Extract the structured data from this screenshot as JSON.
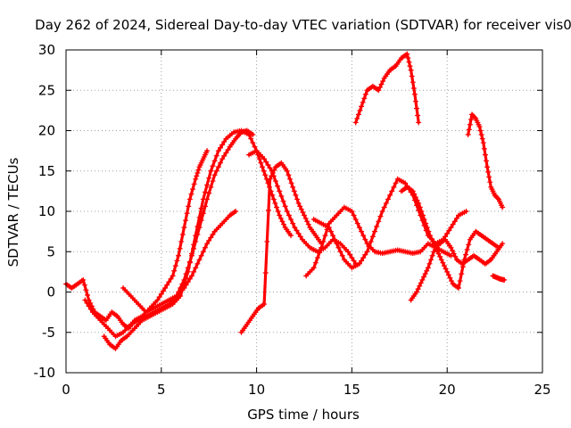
{
  "chart_data": {
    "type": "scatter",
    "title": "Day 262 of 2024, Sidereal Day-to-day VTEC variation (SDTVAR) for receiver vis0",
    "xlabel": "GPS time / hours",
    "ylabel": "SDTVAR / TECUs",
    "xlim": [
      0,
      25
    ],
    "ylim": [
      -10,
      30
    ],
    "xticks": [
      0,
      5,
      10,
      15,
      20,
      25
    ],
    "yticks": [
      -10,
      -5,
      0,
      5,
      10,
      15,
      20,
      25,
      30
    ],
    "grid": true,
    "legend": "none",
    "marker": "plus",
    "color": "#ff0000",
    "series": [
      {
        "name": "track-1",
        "x": [
          0.0,
          0.3,
          0.6,
          0.9,
          1.2,
          1.5,
          1.8,
          2.1,
          2.4,
          2.7,
          3.0,
          3.3,
          3.6,
          4.0,
          4.4,
          4.8,
          5.2,
          5.6,
          5.9,
          6.2,
          6.5,
          6.8,
          7.0,
          7.2,
          7.4
        ],
        "y": [
          1.0,
          0.5,
          1.0,
          1.5,
          -1.0,
          -2.5,
          -3.0,
          -3.5,
          -2.5,
          -3.0,
          -4.0,
          -4.5,
          -3.5,
          -3.0,
          -2.0,
          -1.0,
          0.5,
          2.0,
          4.5,
          8.0,
          11.5,
          14.0,
          15.5,
          16.5,
          17.5
        ]
      },
      {
        "name": "track-2",
        "x": [
          1.0,
          1.4,
          1.8,
          2.2,
          2.6,
          3.0,
          3.4,
          3.8,
          4.2,
          4.6,
          5.0,
          5.4,
          5.8,
          6.2,
          6.6,
          7.0,
          7.4,
          7.8,
          8.2,
          8.6,
          8.9,
          9.2,
          9.5,
          9.8
        ],
        "y": [
          -1.0,
          -2.5,
          -3.5,
          -4.5,
          -5.5,
          -5.0,
          -4.0,
          -3.5,
          -3.0,
          -2.5,
          -2.0,
          -1.5,
          -0.5,
          1.5,
          4.5,
          8.0,
          11.5,
          14.5,
          16.5,
          18.0,
          19.0,
          19.8,
          20.0,
          19.5
        ]
      },
      {
        "name": "track-3",
        "x": [
          2.0,
          2.3,
          2.6,
          2.9,
          3.2,
          3.6,
          4.0,
          4.4,
          4.8,
          5.2,
          5.6,
          6.0,
          6.4,
          6.8,
          7.2,
          7.6,
          8.0,
          8.4,
          8.8,
          9.2,
          9.6,
          10.0,
          10.3,
          10.6,
          10.9,
          11.2,
          11.5,
          11.8
        ],
        "y": [
          -5.5,
          -6.5,
          -7.0,
          -6.0,
          -5.5,
          -4.5,
          -3.5,
          -3.0,
          -2.5,
          -2.0,
          -1.5,
          -0.5,
          2.5,
          7.0,
          11.5,
          15.0,
          17.5,
          19.0,
          19.8,
          20.0,
          19.5,
          17.5,
          15.5,
          13.5,
          11.5,
          9.5,
          8.0,
          7.0
        ]
      },
      {
        "name": "track-4",
        "x": [
          3.0,
          3.4,
          3.8,
          4.2,
          4.6,
          5.0,
          5.4,
          5.8,
          6.2,
          6.6,
          7.0,
          7.4,
          7.8,
          8.2,
          8.6,
          8.9
        ],
        "y": [
          0.5,
          -0.5,
          -1.5,
          -2.5,
          -2.0,
          -1.5,
          -1.0,
          -0.5,
          0.5,
          2.0,
          4.0,
          6.0,
          7.5,
          8.5,
          9.5,
          10.0
        ]
      },
      {
        "name": "track-5",
        "x": [
          9.2,
          9.5,
          9.8,
          10.1,
          10.4,
          10.7,
          11.0,
          11.3,
          11.6,
          11.9,
          12.2,
          12.5,
          12.8,
          13.1,
          13.4
        ],
        "y": [
          -5.0,
          -4.0,
          -3.0,
          -2.0,
          -1.5,
          14.0,
          15.5,
          16.0,
          15.0,
          13.0,
          11.0,
          9.5,
          8.0,
          7.0,
          6.0
        ]
      },
      {
        "name": "track-6",
        "x": [
          9.6,
          10.0,
          10.4,
          10.8,
          11.2,
          11.6,
          12.0,
          12.4,
          12.8,
          13.2,
          13.6,
          14.0,
          14.4,
          14.8,
          15.2
        ],
        "y": [
          17.0,
          17.5,
          16.5,
          15.0,
          12.5,
          10.0,
          8.0,
          6.5,
          5.5,
          5.0,
          5.5,
          6.5,
          6.0,
          5.0,
          3.5
        ]
      },
      {
        "name": "track-7",
        "x": [
          12.6,
          13.0,
          13.4,
          13.8,
          14.2,
          14.6,
          15.0,
          15.4,
          15.8,
          16.2,
          16.6,
          17.0,
          17.4,
          17.8,
          18.2,
          18.6,
          19.0,
          19.4,
          19.8,
          20.2
        ],
        "y": [
          2.0,
          3.0,
          5.5,
          8.5,
          9.5,
          10.5,
          10.0,
          8.0,
          6.0,
          5.0,
          4.8,
          5.0,
          5.2,
          5.0,
          4.8,
          5.0,
          6.0,
          5.5,
          5.0,
          4.5
        ]
      },
      {
        "name": "track-8",
        "x": [
          13.0,
          13.4,
          13.8,
          14.2,
          14.6,
          15.0,
          15.4,
          15.8,
          16.2,
          16.6,
          17.0,
          17.4,
          17.8,
          18.2,
          18.6,
          19.0,
          19.4,
          19.8,
          20.2,
          20.6,
          21.0
        ],
        "y": [
          9.0,
          8.5,
          8.0,
          6.0,
          4.0,
          3.0,
          3.5,
          5.0,
          7.5,
          10.0,
          12.0,
          14.0,
          13.5,
          12.0,
          9.5,
          7.0,
          6.0,
          6.5,
          8.0,
          9.5,
          10.0
        ]
      },
      {
        "name": "track-9",
        "x": [
          15.2,
          15.5,
          15.8,
          16.1,
          16.4,
          16.7,
          17.0,
          17.3,
          17.6,
          17.9,
          18.1,
          18.3,
          18.5
        ],
        "y": [
          21.0,
          23.0,
          25.0,
          25.5,
          25.0,
          26.5,
          27.5,
          28.0,
          29.0,
          29.5,
          27.5,
          24.5,
          21.0
        ]
      },
      {
        "name": "track-10",
        "x": [
          17.6,
          17.9,
          18.2,
          18.5,
          18.8,
          19.1,
          19.4,
          19.7,
          20.0,
          20.3,
          20.6,
          20.9,
          21.2,
          21.5,
          21.8,
          22.1,
          22.4,
          22.7
        ],
        "y": [
          12.5,
          13.0,
          12.5,
          11.0,
          9.0,
          7.0,
          5.5,
          4.0,
          2.5,
          1.0,
          0.5,
          4.0,
          6.5,
          7.5,
          7.0,
          6.5,
          6.0,
          5.5
        ]
      },
      {
        "name": "track-11",
        "x": [
          18.1,
          18.4,
          18.7,
          19.0,
          19.3,
          19.6,
          19.9,
          20.2,
          20.5,
          20.8,
          21.1,
          21.4,
          21.7,
          22.0,
          22.3,
          22.6,
          22.9
        ],
        "y": [
          -1.0,
          0.0,
          1.5,
          3.0,
          5.0,
          6.0,
          6.5,
          5.5,
          4.0,
          3.5,
          4.0,
          4.5,
          4.0,
          3.5,
          4.0,
          5.0,
          6.0
        ]
      },
      {
        "name": "track-12",
        "x": [
          21.1,
          21.3,
          21.5,
          21.7,
          21.9,
          22.1,
          22.3,
          22.5,
          22.7,
          22.9
        ],
        "y": [
          19.5,
          22.0,
          21.5,
          20.5,
          18.5,
          15.5,
          13.0,
          12.0,
          11.5,
          10.5
        ]
      },
      {
        "name": "track-13",
        "x": [
          22.4,
          22.6,
          22.8,
          23.0
        ],
        "y": [
          2.0,
          1.8,
          1.6,
          1.5
        ]
      }
    ]
  }
}
